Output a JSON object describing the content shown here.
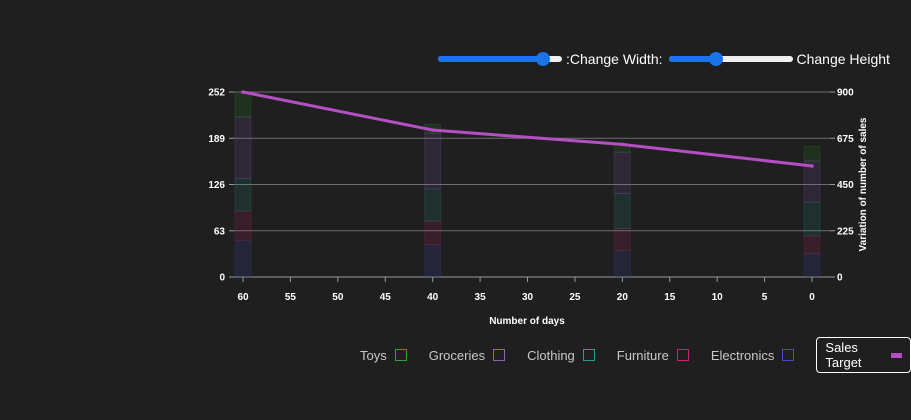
{
  "controls": {
    "width_label": ":Change Width:",
    "height_label": "Change Height",
    "width_slider_value": 0.85,
    "height_slider_value": 0.38
  },
  "chart_data": {
    "type": "bar",
    "x": [
      0,
      20,
      40,
      60
    ],
    "x_axis_reversed": true,
    "x_ticks": [
      60,
      55,
      50,
      45,
      40,
      35,
      30,
      25,
      20,
      15,
      10,
      5,
      0
    ],
    "xlabel": "Number of days",
    "ylabel_left": "",
    "ylabel_right": "Variation of number of sales",
    "ylim_left": [
      0,
      252
    ],
    "yticks_left": [
      0,
      63,
      126,
      189,
      252
    ],
    "ylim_right": [
      0,
      900
    ],
    "yticks_right": [
      0,
      225,
      450,
      675,
      900
    ],
    "grid": true,
    "legend_position": "bottom-right",
    "series": [
      {
        "name": "Electronics",
        "kind": "stacked-bar",
        "axis": "left",
        "color": "#4a4dc9",
        "values": [
          32,
          36,
          44,
          50
        ]
      },
      {
        "name": "Furniture",
        "kind": "stacked-bar",
        "axis": "left",
        "color": "#c8236d",
        "values": [
          24,
          30,
          32,
          40
        ]
      },
      {
        "name": "Clothing",
        "kind": "stacked-bar",
        "axis": "left",
        "color": "#2e9b8f",
        "values": [
          46,
          48,
          44,
          44
        ]
      },
      {
        "name": "Groceries",
        "kind": "stacked-bar",
        "axis": "left",
        "color": "#8e62c4",
        "values": [
          56,
          56,
          76,
          84
        ]
      },
      {
        "name": "Toys",
        "kind": "stacked-bar",
        "axis": "left",
        "color": "#2ea42e",
        "values": [
          20,
          10,
          12,
          32
        ]
      },
      {
        "name": "Sales Target",
        "kind": "line",
        "axis": "right",
        "color": "#b44fc4",
        "values": [
          540,
          645,
          715,
          900
        ]
      }
    ]
  }
}
